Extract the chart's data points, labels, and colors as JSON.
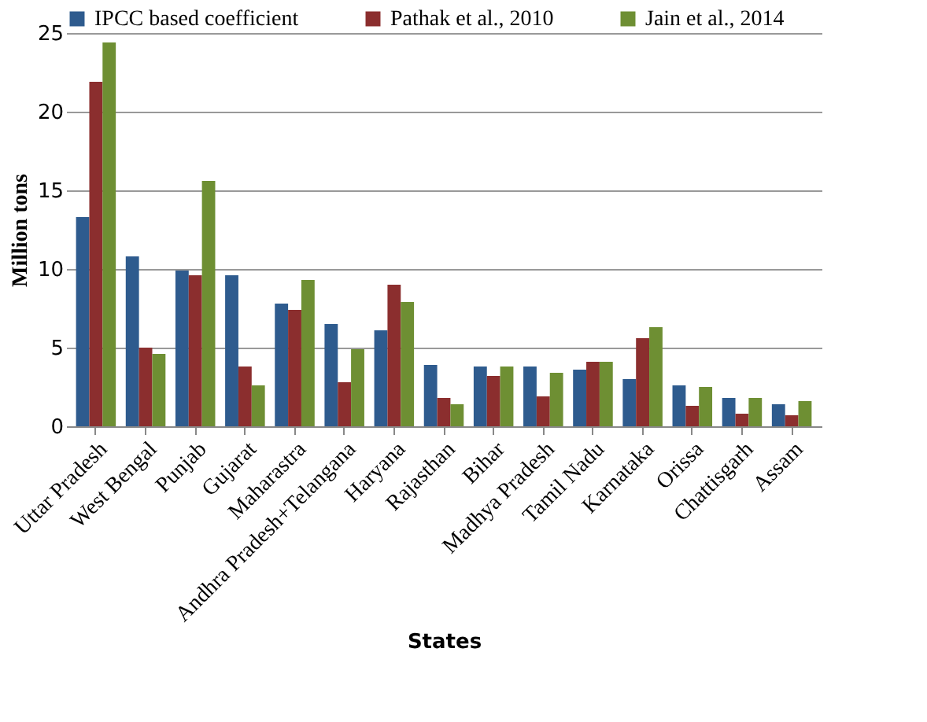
{
  "chart_data": {
    "type": "bar",
    "xlabel": "States",
    "ylabel": "Million tons",
    "categories": [
      "Uttar Pradesh",
      "West Bengal",
      "Punjab",
      "Gujarat",
      "Maharastra",
      "Andhra Pradesh+Telangana",
      "Haryana",
      "Rajasthan",
      "Bihar",
      "Madhya Pradesh",
      "Tamil Nadu",
      "Karnataka",
      "Orissa",
      "Chattisgarh",
      "Assam"
    ],
    "series": [
      {
        "name": "IPCC based coefficient",
        "color": "#2e5b8e",
        "values": [
          13.3,
          10.8,
          9.9,
          9.6,
          7.8,
          6.5,
          6.1,
          3.9,
          3.8,
          3.8,
          3.6,
          3.0,
          2.6,
          1.8,
          1.4
        ]
      },
      {
        "name": "Pathak et al., 2010",
        "color": "#8b2e2e",
        "values": [
          21.9,
          5.0,
          9.6,
          3.8,
          7.4,
          2.8,
          9.0,
          1.8,
          3.2,
          1.9,
          4.1,
          5.6,
          1.3,
          0.8,
          0.7
        ]
      },
      {
        "name": "Jain et al., 2014",
        "color": "#6e8f33",
        "values": [
          24.4,
          4.6,
          15.6,
          2.6,
          9.3,
          4.9,
          7.9,
          1.4,
          3.8,
          3.4,
          4.1,
          6.3,
          2.5,
          1.8,
          1.6
        ]
      }
    ],
    "ylim": [
      0,
      25
    ],
    "yticks": [
      0,
      5,
      10,
      15,
      20,
      25
    ],
    "grid": "y",
    "legend": "top"
  }
}
